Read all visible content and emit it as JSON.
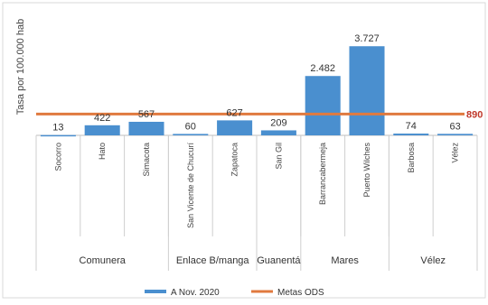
{
  "chart_data": {
    "type": "bar",
    "ylabel": "Tasa por 100.000 hab",
    "ylim": [
      0,
      4000
    ],
    "grid": false,
    "legend_position": "bottom",
    "categories": [
      "Socorro",
      "Hato",
      "Simacota",
      "San Vicente de Chucurí",
      "Zapatoca",
      "San Gil",
      "Barrancabermeja",
      "Puerto Wilches",
      "Barbosa",
      "Vélez"
    ],
    "groups": [
      {
        "name": "Comunera",
        "categories": [
          "Socorro",
          "Hato",
          "Simacota"
        ]
      },
      {
        "name": "Enlace B/manga",
        "categories": [
          "San Vicente de Chucurí",
          "Zapatoca"
        ]
      },
      {
        "name": "Guanentá",
        "categories": [
          "San Gil"
        ]
      },
      {
        "name": "Mares",
        "categories": [
          "Barrancabermeja",
          "Puerto Wilches"
        ]
      },
      {
        "name": "Vélez",
        "categories": [
          "Barbosa",
          "Vélez"
        ]
      }
    ],
    "series": [
      {
        "name": "A Nov. 2020",
        "kind": "bar",
        "color": "#4a8fcf",
        "values": [
          13,
          422,
          567,
          60,
          627,
          209,
          2482,
          3727,
          74,
          63
        ],
        "value_labels": [
          "13",
          "422",
          "567",
          "60",
          "627",
          "209",
          "2.482",
          "3.727",
          "74",
          "63"
        ]
      },
      {
        "name": "Metas ODS",
        "kind": "line",
        "color": "#e07a3f",
        "value": 890,
        "value_label": "890"
      }
    ]
  }
}
